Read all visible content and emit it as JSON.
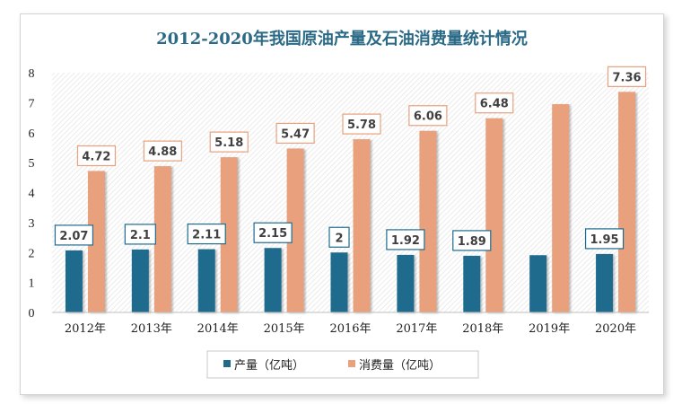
{
  "chart_data": {
    "type": "bar",
    "title": "2012-2020年我国原油产量及石油消费量统计情况",
    "categories": [
      "2012年",
      "2013年",
      "2014年",
      "2015年",
      "2016年",
      "2017年",
      "2018年",
      "2019年",
      "2020年"
    ],
    "series": [
      {
        "name": "产量（亿吨）",
        "values": [
          2.07,
          2.1,
          2.11,
          2.15,
          2.0,
          1.92,
          1.89,
          1.91,
          1.95
        ],
        "labels": [
          "2.07",
          "2.1",
          "2.11",
          "2.15",
          "2",
          "1.92",
          "1.89",
          "",
          "1.95"
        ],
        "color": "#1f6b8e",
        "label_border": "#1f6b8e"
      },
      {
        "name": "消费量（亿吨）",
        "values": [
          4.72,
          4.88,
          5.18,
          5.47,
          5.78,
          6.06,
          6.48,
          6.95,
          7.36
        ],
        "labels": [
          "4.72",
          "4.88",
          "5.18",
          "5.47",
          "5.78",
          "6.06",
          "6.48",
          "",
          "7.36"
        ],
        "color": "#e8a07d",
        "label_border": "#e8a07d"
      }
    ],
    "yticks": [
      "0",
      "1",
      "2",
      "3",
      "4",
      "5",
      "6",
      "7",
      "8"
    ],
    "ylim": [
      0,
      8
    ],
    "xlabel": "",
    "ylabel": "",
    "grid": false,
    "legend_position": "bottom"
  }
}
